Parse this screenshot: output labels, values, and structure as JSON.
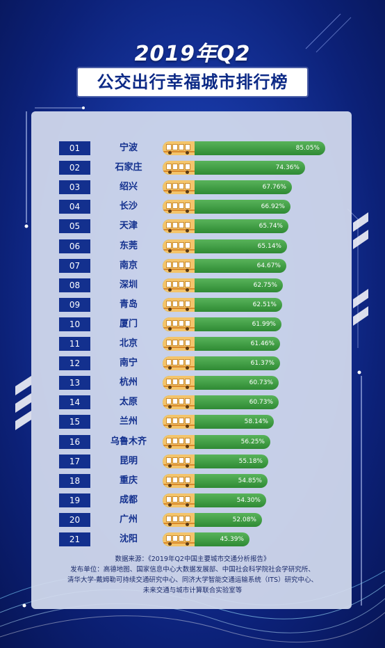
{
  "header": {
    "title_year": "2019年Q2",
    "title_main": "公交出行幸福城市排行榜"
  },
  "colors": {
    "background": "#1737a3",
    "rank_badge": "#13308e",
    "bar": "#3c9a40",
    "bus": "#f3c46b"
  },
  "chart_data": {
    "type": "bar",
    "orientation": "horizontal",
    "title": "公交出行幸福城市排行榜",
    "unit": "%",
    "ranks": [
      "01",
      "02",
      "03",
      "04",
      "05",
      "06",
      "07",
      "08",
      "09",
      "10",
      "11",
      "12",
      "13",
      "14",
      "15",
      "16",
      "17",
      "18",
      "19",
      "20",
      "21"
    ],
    "categories": [
      "宁波",
      "石家庄",
      "绍兴",
      "长沙",
      "天津",
      "东莞",
      "南京",
      "深圳",
      "青岛",
      "厦门",
      "北京",
      "南宁",
      "杭州",
      "太原",
      "兰州",
      "乌鲁木齐",
      "昆明",
      "重庆",
      "成都",
      "广州",
      "沈阳"
    ],
    "values": [
      85.05,
      74.36,
      67.76,
      66.92,
      65.74,
      65.14,
      64.67,
      62.75,
      62.51,
      61.99,
      61.46,
      61.37,
      60.73,
      60.73,
      58.14,
      56.25,
      55.18,
      54.85,
      54.3,
      52.08,
      45.39
    ],
    "value_labels": [
      "85.05%",
      "74.36%",
      "67.76%",
      "66.92%",
      "65.74%",
      "65.14%",
      "64.67%",
      "62.75%",
      "62.51%",
      "61.99%",
      "61.46%",
      "61.37%",
      "60.73%",
      "60.73%",
      "58.14%",
      "56.25%",
      "55.18%",
      "54.85%",
      "54.30%",
      "52.08%",
      "45.39%"
    ]
  },
  "source": {
    "line1": "数据来源：《2019年Q2中国主要城市交通分析报告》",
    "line2": "发布单位：高德地图、国家信息中心大数据发展部、中国社会科学院社会学研究所、",
    "line3": "清华大学-戴姆勒可持续交通研究中心、同济大学智能交通运输系统（ITS）研究中心、",
    "line4": "未来交通与城市计算联合实验室等"
  }
}
